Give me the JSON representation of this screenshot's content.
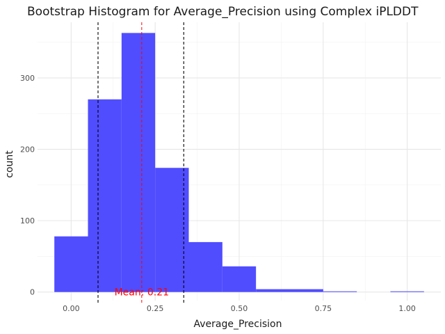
{
  "chart_data": {
    "type": "bar",
    "title": "Bootstrap Histogram for Average_Precision using Complex iPLDDT",
    "xlabel": "Average_Precision",
    "ylabel": "count",
    "xlim": [
      -0.1,
      1.1
    ],
    "ylim": [
      -12,
      378
    ],
    "x_ticks": [
      {
        "value": 0.0,
        "label": "0.00"
      },
      {
        "value": 0.25,
        "label": "0.25"
      },
      {
        "value": 0.5,
        "label": "0.50"
      },
      {
        "value": 0.75,
        "label": "0.75"
      },
      {
        "value": 1.0,
        "label": "1.00"
      }
    ],
    "y_ticks": [
      {
        "value": 0,
        "label": "0"
      },
      {
        "value": 100,
        "label": "100"
      },
      {
        "value": 200,
        "label": "200"
      },
      {
        "value": 300,
        "label": "300"
      }
    ],
    "bins": [
      {
        "x0": -0.05,
        "x1": 0.05,
        "count": 78
      },
      {
        "x0": 0.05,
        "x1": 0.15,
        "count": 270
      },
      {
        "x0": 0.15,
        "x1": 0.25,
        "count": 363
      },
      {
        "x0": 0.25,
        "x1": 0.35,
        "count": 174
      },
      {
        "x0": 0.35,
        "x1": 0.45,
        "count": 70
      },
      {
        "x0": 0.45,
        "x1": 0.55,
        "count": 36
      },
      {
        "x0": 0.55,
        "x1": 0.65,
        "count": 4
      },
      {
        "x0": 0.65,
        "x1": 0.75,
        "count": 4
      },
      {
        "x0": 0.75,
        "x1": 0.85,
        "count": 1
      },
      {
        "x0": 0.85,
        "x1": 0.95,
        "count": 0
      },
      {
        "x0": 0.95,
        "x1": 1.05,
        "count": 1
      }
    ],
    "mean_line": {
      "value": 0.21,
      "label": "Mean: 0.21",
      "color": "#ff0000"
    },
    "ci_lines": [
      0.08,
      0.335
    ],
    "bar_color": "#4a47ff",
    "grid": true
  }
}
